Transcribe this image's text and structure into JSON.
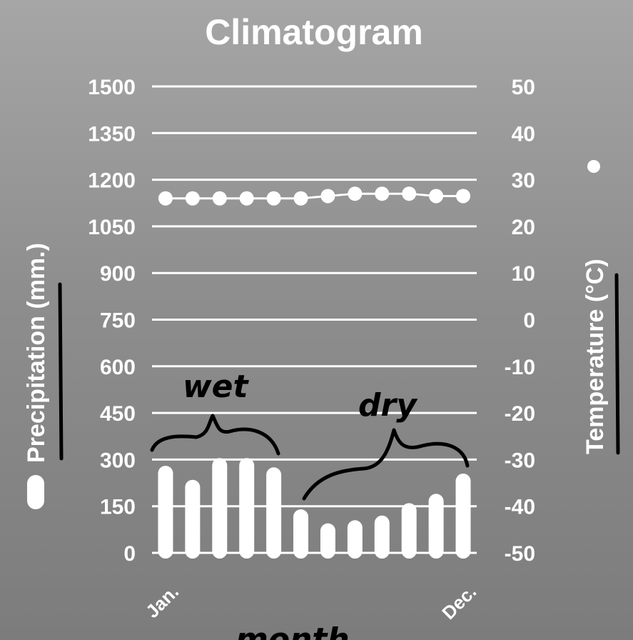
{
  "chart_data": {
    "type": "bar",
    "title": "Climatogram",
    "categories": [
      "Jan.",
      "",
      "",
      "",
      "",
      "",
      "",
      "",
      "",
      "",
      "",
      "Dec."
    ],
    "y_left": {
      "label": "Precipitation (mm.)",
      "range": [
        0,
        1500
      ],
      "ticks": [
        0,
        150,
        300,
        450,
        600,
        750,
        900,
        1050,
        1200,
        1350,
        1500
      ]
    },
    "y_right": {
      "label": "Temperature (°C)",
      "range": [
        -50,
        50
      ],
      "ticks": [
        -50,
        -40,
        -30,
        -20,
        -10,
        0,
        10,
        20,
        30,
        40,
        50
      ]
    },
    "series": [
      {
        "name": "Precipitation (mm.)",
        "type": "bar",
        "axis": "left",
        "values": [
          280,
          235,
          305,
          305,
          275,
          140,
          95,
          105,
          120,
          160,
          190,
          255
        ]
      },
      {
        "name": "Temperature (°C)",
        "type": "line",
        "axis": "right",
        "values": [
          26,
          26,
          26,
          26,
          26,
          26,
          26.5,
          27,
          27,
          27,
          26.5,
          26.5
        ]
      }
    ],
    "grid": true,
    "annotations": [
      {
        "text": "wet"
      },
      {
        "text": "dry"
      },
      {
        "text": "month"
      }
    ],
    "colors": {
      "marks": "#ffffff",
      "annotation": "#000000"
    }
  }
}
